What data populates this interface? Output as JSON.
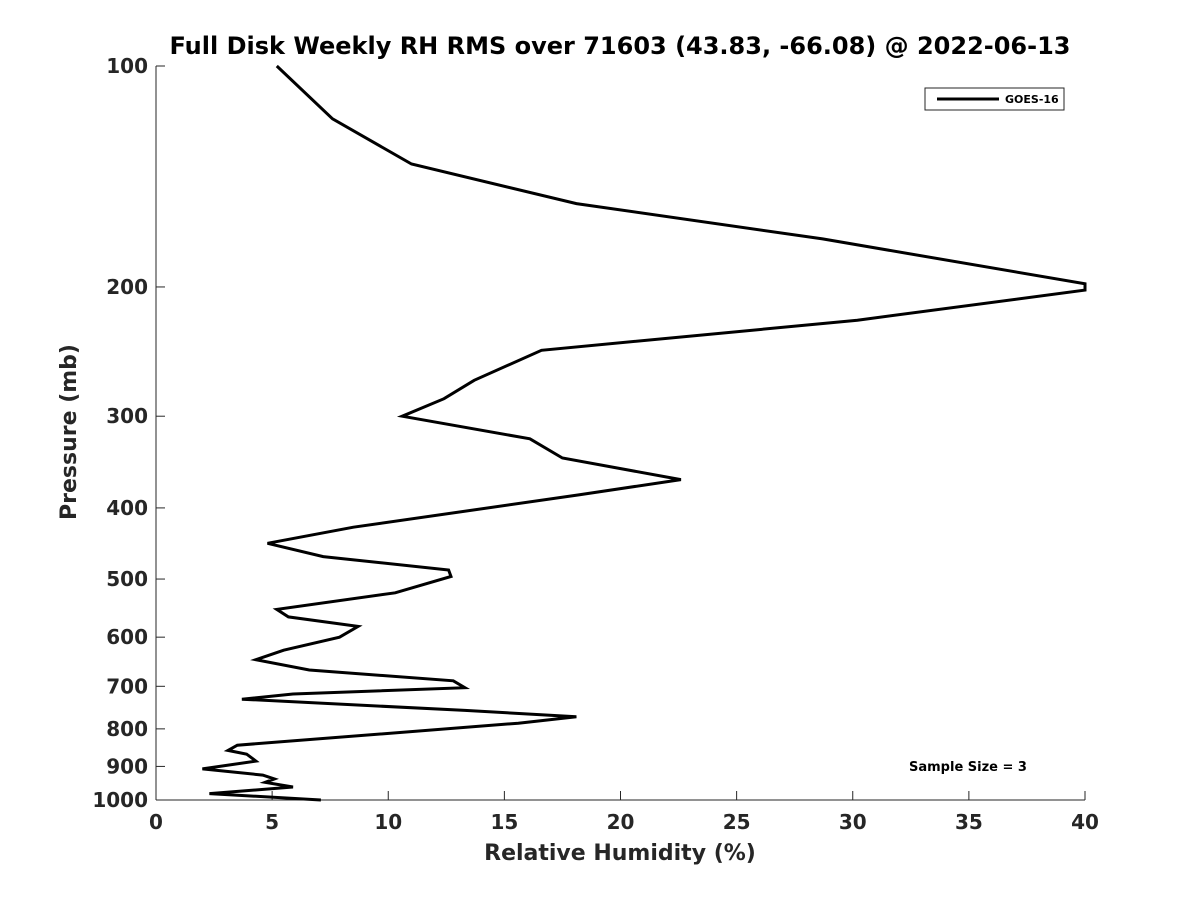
{
  "chart_data": {
    "type": "line",
    "title": "Full Disk Weekly RH RMS over 71603 (43.83, -66.08) @ 2022-06-13",
    "xlabel": "Relative Humidity (%)",
    "ylabel": "Pressure (mb)",
    "xlim": [
      0,
      40
    ],
    "ylim": [
      100,
      1000
    ],
    "y_scale": "log",
    "y_reversed": true,
    "grid": false,
    "legend_position": "top-right",
    "x_ticks": [
      0,
      5,
      10,
      15,
      20,
      25,
      30,
      35,
      40
    ],
    "x_tick_labels": [
      "0",
      "5",
      "10",
      "15",
      "20",
      "25",
      "30",
      "35",
      "40"
    ],
    "y_ticks": [
      100,
      200,
      300,
      400,
      500,
      600,
      700,
      800,
      900,
      1000
    ],
    "y_tick_labels": [
      "100",
      "200",
      "300",
      "400",
      "500",
      "600",
      "700",
      "800",
      "900",
      "1000"
    ],
    "series": [
      {
        "name": "GOES-16",
        "color": "#000000",
        "points": [
          [
            5.2,
            100
          ],
          [
            7.6,
            118
          ],
          [
            11.0,
            136
          ],
          [
            18.1,
            154
          ],
          [
            28.7,
            172
          ],
          [
            40.0,
            198
          ],
          [
            40.0,
            202
          ],
          [
            30.2,
            222
          ],
          [
            16.6,
            244
          ],
          [
            13.7,
            268
          ],
          [
            12.4,
            284
          ],
          [
            10.6,
            300
          ],
          [
            16.1,
            322
          ],
          [
            17.5,
            342
          ],
          [
            22.6,
            366
          ],
          [
            18.2,
            384
          ],
          [
            8.5,
            425
          ],
          [
            4.8,
            447
          ],
          [
            7.2,
            466
          ],
          [
            12.6,
            486
          ],
          [
            12.7,
            496
          ],
          [
            10.3,
            522
          ],
          [
            5.2,
            550
          ],
          [
            5.7,
            563
          ],
          [
            8.7,
            580
          ],
          [
            7.9,
            600
          ],
          [
            5.5,
            625
          ],
          [
            4.3,
            644
          ],
          [
            6.6,
            665
          ],
          [
            12.8,
            688
          ],
          [
            13.3,
            703
          ],
          [
            5.9,
            717
          ],
          [
            3.7,
            729
          ],
          [
            13.3,
            755
          ],
          [
            18.1,
            770
          ],
          [
            15.6,
            786
          ],
          [
            3.5,
            842
          ],
          [
            3.1,
            856
          ],
          [
            3.9,
            866
          ],
          [
            4.3,
            885
          ],
          [
            2.0,
            907
          ],
          [
            4.6,
            925
          ],
          [
            5.1,
            936
          ],
          [
            4.7,
            946
          ],
          [
            5.9,
            960
          ],
          [
            2.3,
            980
          ],
          [
            7.1,
            1000
          ]
        ]
      }
    ],
    "legend": {
      "entries": [
        "GOES-16"
      ]
    },
    "annotations": [
      "Sample Size = 3"
    ]
  }
}
